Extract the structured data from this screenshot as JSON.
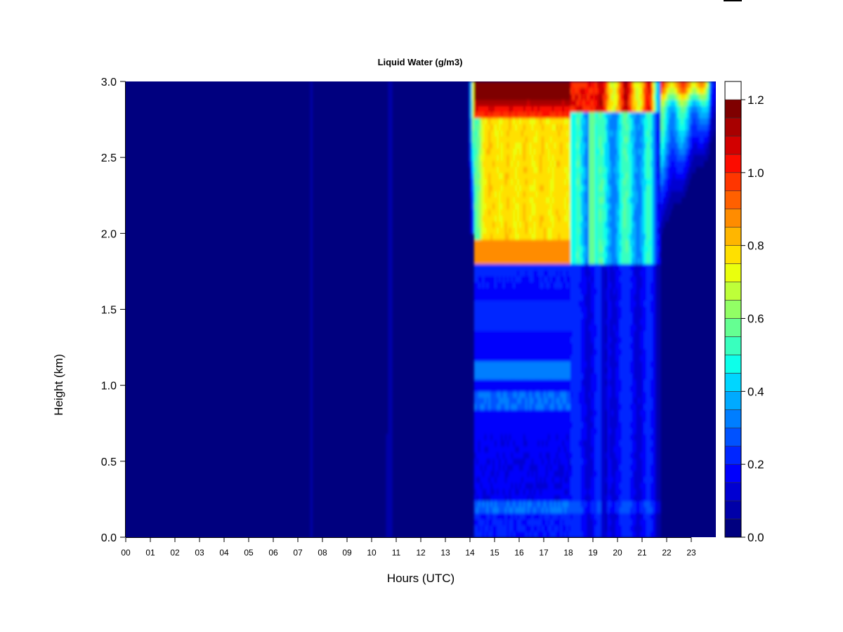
{
  "chart_data": {
    "type": "heatmap",
    "title": "Liquid Water (g/m3)",
    "xlabel": "Hours (UTC)",
    "ylabel": "Height (km)",
    "x_ticks": [
      "00",
      "01",
      "02",
      "03",
      "04",
      "05",
      "06",
      "07",
      "08",
      "09",
      "10",
      "11",
      "12",
      "13",
      "14",
      "15",
      "16",
      "17",
      "18",
      "19",
      "20",
      "21",
      "22",
      "23"
    ],
    "xlim": [
      0,
      24
    ],
    "y_ticks": [
      "0.0",
      "0.5",
      "1.0",
      "1.5",
      "2.0",
      "2.5",
      "3.0"
    ],
    "ylim": [
      0,
      3
    ],
    "colorbar": {
      "levels": [
        0.0,
        0.05,
        0.1,
        0.15,
        0.2,
        0.25,
        0.3,
        0.35,
        0.4,
        0.45,
        0.5,
        0.55,
        0.6,
        0.65,
        0.7,
        0.75,
        0.8,
        0.85,
        0.9,
        0.95,
        1.0,
        1.05,
        1.1,
        1.15,
        1.2,
        1.25
      ],
      "colors": [
        "#00007F",
        "#0000A8",
        "#0000D2",
        "#0000FC",
        "#0026FF",
        "#0052FF",
        "#007EFF",
        "#00AAFF",
        "#00D6FF",
        "#0DFFEA",
        "#39FFBE",
        "#65FF92",
        "#92FF65",
        "#BEFF39",
        "#EAFF0D",
        "#FFE000",
        "#FFB600",
        "#FF8C00",
        "#FF6000",
        "#FF3600",
        "#FC0C00",
        "#D20000",
        "#A80000",
        "#7F0000"
      ],
      "tick_labels": [
        "0.0",
        "0.2",
        "0.4",
        "0.6",
        "0.8",
        "1.0",
        "1.2"
      ],
      "tick_values": [
        0.0,
        0.2,
        0.4,
        0.6,
        0.8,
        1.0,
        1.2
      ]
    },
    "field_description": "Near zero 00-14 UTC. From ~14.2 to ~18 UTC: ~0.1-0.3 below 1.8 km, ~0.75-0.8 between 1.9 and 2.75 km, 1.0-1.2 at 2.8-3.0 km. Decreasing after 18 UTC with intermittent columns to ~21.7 UTC, then near zero at low levels with weak values aloft."
  }
}
